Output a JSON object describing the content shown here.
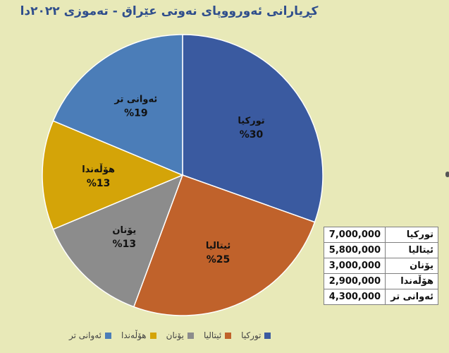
{
  "title": "کڕیارانی ئەورووپای نەوتی عێراق - تەموزی ٢٠٢٢دا",
  "colors": {
    "turkey": "#3a5aa0",
    "italy": "#c0622b",
    "greece": "#8c8c8c",
    "netherlands": "#d4a408",
    "others": "#4b7db8"
  },
  "chart_data": {
    "type": "pie",
    "title": "کڕیارانی ئەورووپای نەوتی عێراق - تەموزی ٢٠٢٢دا",
    "categories": [
      "تورکیا",
      "ئیتالیا",
      "یۆنان",
      "هۆڵەندا",
      "ئەوانی تر"
    ],
    "values": [
      7000000,
      5800000,
      3000000,
      2900000,
      4300000
    ],
    "percent_labels": [
      "%30",
      "%25",
      "%13",
      "%13",
      "%19"
    ],
    "legend_position": "bottom"
  },
  "table": {
    "rows": [
      {
        "name": "تورکیا",
        "value": "7,000,000"
      },
      {
        "name": "ئیتالیا",
        "value": "5,800,000"
      },
      {
        "name": "یۆنان",
        "value": "3,000,000"
      },
      {
        "name": "هۆڵەندا",
        "value": "2,900,000"
      },
      {
        "name": "ئەوانی تر",
        "value": "4,300,000"
      }
    ]
  }
}
